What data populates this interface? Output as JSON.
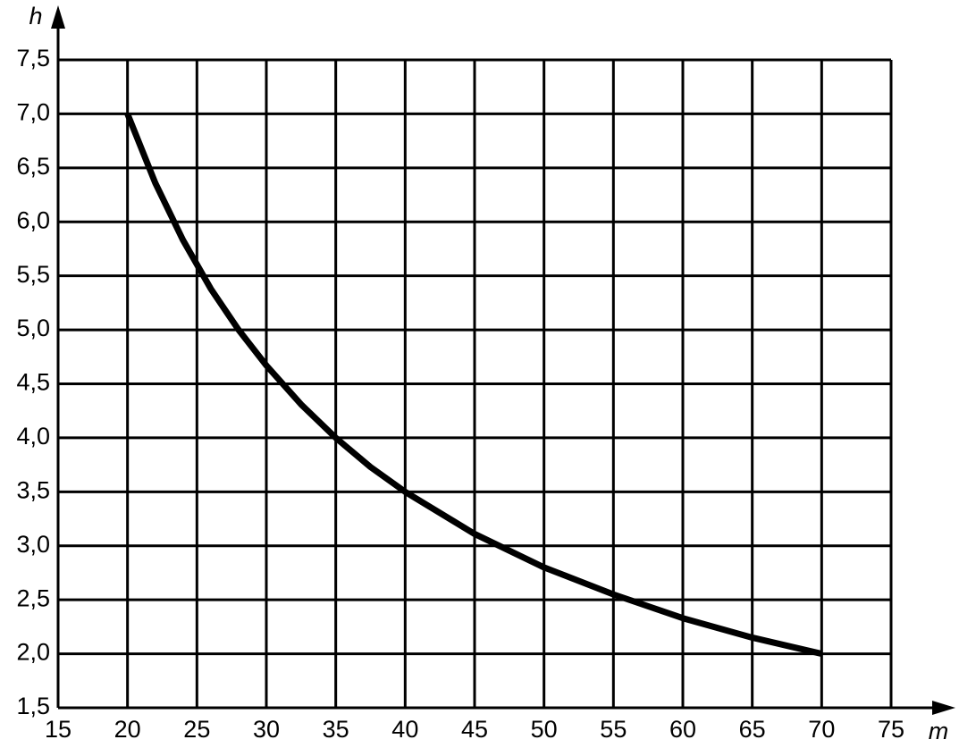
{
  "chart_data": {
    "type": "line",
    "x_label": "m",
    "y_label": "h",
    "x": [
      20,
      22,
      24,
      26,
      28,
      30,
      32.5,
      35,
      37.5,
      40,
      45,
      50,
      55,
      60,
      65,
      70
    ],
    "series": [
      {
        "color": "#000000",
        "values": [
          7,
          6.36,
          5.83,
          5.38,
          5,
          4.67,
          4.31,
          4,
          3.73,
          3.5,
          3.11,
          2.8,
          2.55,
          2.33,
          2.15,
          2
        ]
      }
    ],
    "xlim": [
      15,
      75
    ],
    "ylim": [
      1.5,
      7.5
    ],
    "xticks": [
      15,
      20,
      25,
      30,
      35,
      40,
      45,
      50,
      55,
      60,
      65,
      70,
      75
    ],
    "yticks": [
      {
        "value": 1.5,
        "label": "1,5"
      },
      {
        "value": 2,
        "label": "2,0"
      },
      {
        "value": 2.5,
        "label": "2,5"
      },
      {
        "value": 3,
        "label": "3,0"
      },
      {
        "value": 3.5,
        "label": "3,5"
      },
      {
        "value": 4,
        "label": "4,0"
      },
      {
        "value": 4.5,
        "label": "4,5"
      },
      {
        "value": 5,
        "label": "5,0"
      },
      {
        "value": 5.5,
        "label": "5,5"
      },
      {
        "value": 6,
        "label": "6,0"
      },
      {
        "value": 6.5,
        "label": "6,5"
      },
      {
        "value": 7,
        "label": "7,0"
      },
      {
        "value": 7.5,
        "label": "7,5"
      }
    ],
    "grid": true
  }
}
